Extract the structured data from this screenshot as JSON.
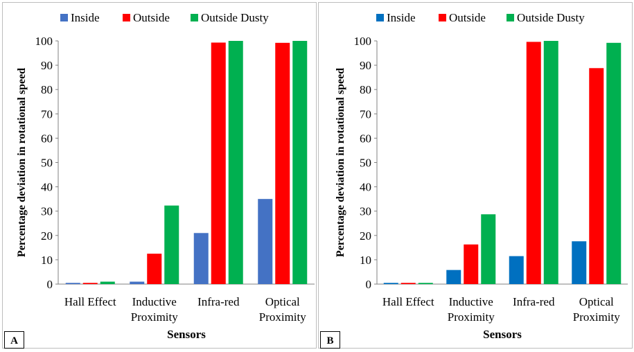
{
  "colors": {
    "inside_a": "#4472c4",
    "inside_b": "#0070c0",
    "outside": "#ff0000",
    "outside_dusty": "#00b050"
  },
  "chart_data": [
    {
      "type": "bar",
      "panel_label": "A",
      "categories": [
        "Hall Effect",
        "Inductive Proximity",
        "Infra-red",
        "Optical Proximity"
      ],
      "category_lines": [
        [
          "Hall Effect"
        ],
        [
          "Inductive",
          "Proximity"
        ],
        [
          "Infra-red"
        ],
        [
          "Optical",
          "Proximity"
        ]
      ],
      "series": [
        {
          "name": "Inside",
          "color": "#4472c4",
          "values": [
            0.5,
            1,
            21,
            35
          ]
        },
        {
          "name": "Outside",
          "color": "#ff0000",
          "values": [
            0.5,
            12.5,
            99.3,
            99.2
          ]
        },
        {
          "name": "Outside Dusty",
          "color": "#00b050",
          "values": [
            1,
            32.3,
            100,
            100
          ]
        }
      ],
      "xlabel": "Sensors",
      "ylabel": "Percentage deviation in rotational speed",
      "ylim": [
        0,
        100
      ],
      "yticks": [
        0,
        10,
        20,
        30,
        40,
        50,
        60,
        70,
        80,
        90,
        100
      ],
      "legend_position": "top"
    },
    {
      "type": "bar",
      "panel_label": "B",
      "categories": [
        "Hall Effect",
        "Inductive Proximity",
        "Infra-red",
        "Optical Proximity"
      ],
      "category_lines": [
        [
          "Hall Effect"
        ],
        [
          "Inductive",
          "Proximity"
        ],
        [
          "Infra-red"
        ],
        [
          "Optical",
          "Proximity"
        ]
      ],
      "series": [
        {
          "name": "Inside",
          "color": "#0070c0",
          "values": [
            0.5,
            5.8,
            11.5,
            17.6
          ]
        },
        {
          "name": "Outside",
          "color": "#ff0000",
          "values": [
            0.5,
            16.3,
            99.6,
            88.8
          ]
        },
        {
          "name": "Outside Dusty",
          "color": "#00b050",
          "values": [
            0.5,
            28.7,
            100,
            99.2
          ]
        }
      ],
      "xlabel": "Sensors",
      "ylabel": "Percentage deviation in rotational speed",
      "ylim": [
        0,
        100
      ],
      "yticks": [
        0,
        10,
        20,
        30,
        40,
        50,
        60,
        70,
        80,
        90,
        100
      ],
      "legend_position": "top"
    }
  ]
}
